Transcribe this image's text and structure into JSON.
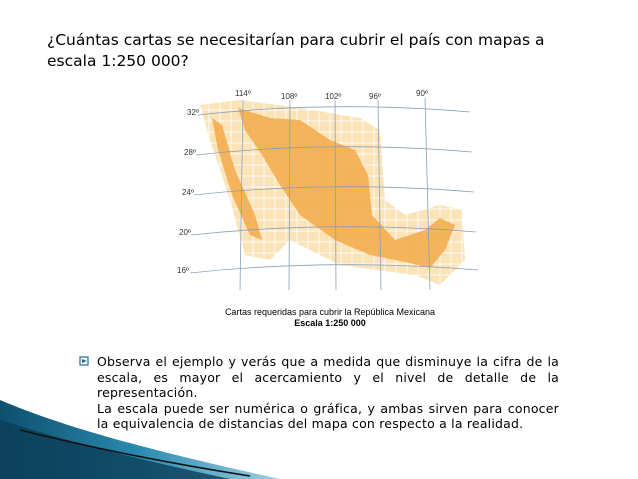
{
  "question": "¿Cuántas cartas se necesitarían para cubrir el país con mapas a escala 1:250 000?",
  "map": {
    "longitudes": [
      "114º",
      "108º",
      "102º",
      "96º",
      "90º"
    ],
    "latitudes": [
      "32º",
      "28º",
      "24º",
      "20º",
      "16º"
    ]
  },
  "caption": {
    "line1": "Cartas requeridas para cubrir la República Mexicana",
    "line2": "Escala 1:250 000"
  },
  "paragraphs": [
    "Observa el ejemplo y verás que a medida que disminuye la cifra de la escala, es mayor el acercamiento y el nivel de detalle de la representación.",
    "La escala puede ser numérica o gráfica, y ambas sirven para conocer la equivalencia de distancias del mapa con respecto a la realidad."
  ]
}
